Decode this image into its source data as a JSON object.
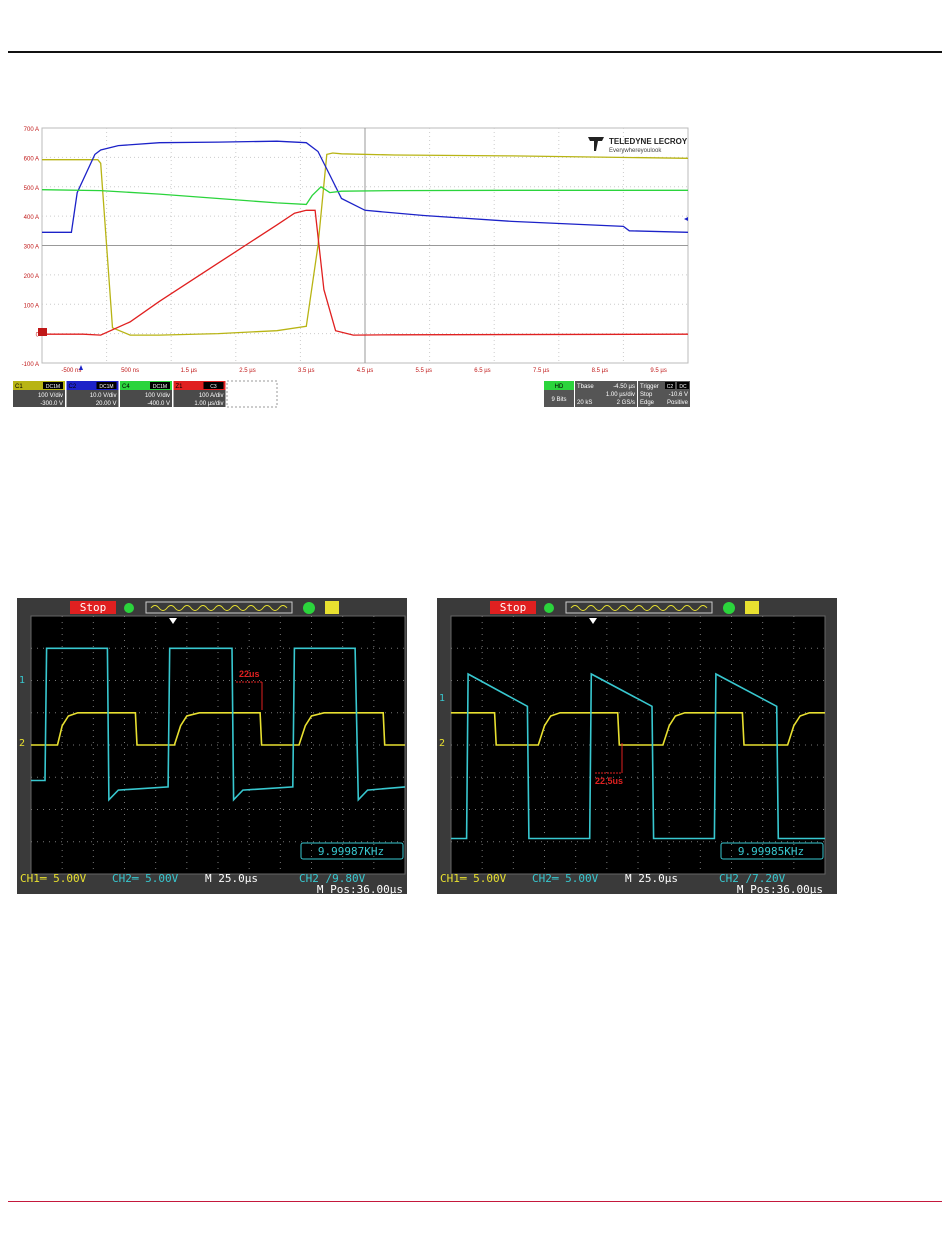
{
  "lecroy": {
    "logo_brand": "TELEDYNE LECROY",
    "logo_tagline": "Everywhereyoulook",
    "y_ticks": [
      "700 A",
      "600 A",
      "500 A",
      "400 A",
      "300 A",
      "200 A",
      "100 A",
      "0",
      "-100 A"
    ],
    "x_ticks": [
      "-500 ns",
      "500 ns",
      "1.5 µs",
      "2.5 µs",
      "3.5 µs",
      "4.5 µs",
      "5.5 µs",
      "6.5 µs",
      "7.5 µs",
      "8.5 µs",
      "9.5 µs"
    ],
    "channels": [
      {
        "id": "C1",
        "coupling": "DC1M",
        "scale": "100 V/div",
        "offset": "-300.0 V",
        "color": "#b8b414"
      },
      {
        "id": "C2",
        "coupling": "DC1M",
        "scale": "10.0 V/div",
        "offset": "20.00 V",
        "color": "#1c22c8"
      },
      {
        "id": "C4",
        "coupling": "DC1M",
        "scale": "100 V/div",
        "offset": "-400.0 V",
        "color": "#2bd43c"
      },
      {
        "id": "Z1",
        "coupling": "C3",
        "scale": "100 A/div",
        "offset": "1.00 µs/div",
        "color": "#e02020"
      }
    ],
    "hd_label": "HD",
    "bits": "9 Bits",
    "tbase_label": "Tbase",
    "tbase_value": "-4.50 µs",
    "tbase_div": "1.00 µs/div",
    "samples": "20 kS",
    "rate": "2 GS/s",
    "trigger_label": "Trigger",
    "trigger_ch": "C2",
    "trigger_coupling": "DC",
    "trigger_mode": "Stop",
    "trigger_level": "-10.6 V",
    "trigger_type": "Edge",
    "trigger_slope": "Positive",
    "colors": {
      "yellow": "#b8b414",
      "blue": "#1c22c8",
      "green": "#2bd43c",
      "red": "#e02020"
    }
  },
  "scope1": {
    "status": "Stop",
    "ch1_marker": "1",
    "ch2_marker": "2",
    "annotation": "22us",
    "freq": "9.99987KHz",
    "ch1": "CH1═ 5.00V",
    "ch2": "CH2═ 5.00V",
    "time": "M 25.0µs",
    "trigger": "CH2 ∕9.80V",
    "mpos": "M Pos:36.00µs"
  },
  "scope2": {
    "status": "Stop",
    "ch1_marker": "1",
    "ch2_marker": "2",
    "annotation": "22.5us",
    "freq": "9.99985KHz",
    "ch1": "CH1═ 5.00V",
    "ch2": "CH2═ 5.00V",
    "time": "M 25.0µs",
    "trigger": "CH2 ∕7.20V",
    "mpos": "M Pos:36.00µs"
  },
  "chart_data": [
    {
      "type": "line",
      "x_unit": "µs",
      "xlim": [
        -1.0,
        10.0
      ],
      "ylim": [
        -100,
        700
      ],
      "y_unit": "A",
      "grid": true,
      "series": [
        {
          "name": "C1",
          "color": "#b8b414",
          "x": [
            -1.0,
            -0.05,
            0.0,
            0.2,
            0.5,
            1.0,
            2.0,
            3.0,
            3.5,
            3.7,
            3.85,
            3.95,
            4.1,
            5.0,
            7.0,
            10.0
          ],
          "y": [
            592,
            592,
            580,
            20,
            -5,
            -5,
            0,
            10,
            25,
            300,
            610,
            615,
            612,
            608,
            605,
            597
          ]
        },
        {
          "name": "C2",
          "color": "#1c22c8",
          "x": [
            -1.0,
            -0.5,
            -0.4,
            -0.1,
            0.0,
            0.3,
            1.0,
            2.0,
            3.0,
            3.5,
            3.7,
            3.9,
            4.1,
            4.5,
            5.5,
            7.0,
            8.9,
            9.0,
            10.0
          ],
          "y": [
            345,
            345,
            480,
            610,
            625,
            640,
            650,
            652,
            655,
            650,
            620,
            540,
            460,
            420,
            402,
            382,
            365,
            350,
            345
          ]
        },
        {
          "name": "C4",
          "color": "#2bd43c",
          "x": [
            -1.0,
            0.0,
            1.0,
            2.0,
            3.0,
            3.5,
            3.6,
            3.75,
            3.9,
            4.1,
            5.0,
            7.0,
            10.0
          ],
          "y": [
            490,
            487,
            475,
            460,
            445,
            440,
            470,
            500,
            480,
            485,
            487,
            488,
            488
          ]
        },
        {
          "name": "Z1",
          "color": "#e02020",
          "x": [
            -1.0,
            -0.3,
            0.0,
            0.5,
            1.0,
            2.0,
            3.0,
            3.3,
            3.5,
            3.65,
            3.8,
            4.0,
            4.3,
            5.0,
            10.0
          ],
          "y": [
            -2,
            -2,
            -5,
            40,
            110,
            240,
            370,
            410,
            420,
            420,
            150,
            10,
            -5,
            -4,
            -2
          ]
        }
      ]
    },
    {
      "type": "line",
      "x_unit": "div",
      "xlim": [
        0,
        12
      ],
      "ylim": [
        -4,
        4
      ],
      "grid": true,
      "series": [
        {
          "name": "CH1",
          "color": "#e8e030",
          "x": [
            0,
            0.85,
            1.0,
            1.2,
            1.5,
            3.35,
            3.4,
            4.6,
            4.8,
            5.0,
            5.4,
            7.35,
            7.4,
            8.6,
            8.8,
            9.0,
            9.4,
            11.3,
            11.35,
            12
          ],
          "y": [
            0,
            0,
            0.6,
            0.9,
            1.0,
            1.0,
            0,
            0,
            0.6,
            0.9,
            1.0,
            1.0,
            0,
            0,
            0.6,
            0.9,
            1.0,
            1.0,
            0,
            0
          ]
        },
        {
          "name": "CH2",
          "color": "#38c8d0",
          "x": [
            0,
            0.45,
            0.5,
            2.45,
            2.5,
            2.8,
            4.4,
            4.45,
            6.45,
            6.5,
            6.8,
            8.4,
            8.45,
            10.4,
            10.5,
            10.8,
            12
          ],
          "y": [
            -1.1,
            -1.1,
            3.0,
            3.0,
            -1.7,
            -1.4,
            -1.3,
            3.0,
            3.0,
            -1.7,
            -1.4,
            -1.3,
            3.0,
            3.0,
            -1.7,
            -1.4,
            -1.3
          ]
        }
      ]
    },
    {
      "type": "line",
      "x_unit": "div",
      "xlim": [
        0,
        12
      ],
      "ylim": [
        -4,
        4
      ],
      "grid": true,
      "series": [
        {
          "name": "CH1",
          "color": "#e8e030",
          "x": [
            0,
            1.4,
            1.45,
            2.8,
            3.0,
            3.2,
            3.5,
            5.35,
            5.4,
            6.8,
            7.0,
            7.2,
            7.5,
            9.35,
            9.4,
            10.8,
            11.0,
            11.2,
            11.5,
            12
          ],
          "y": [
            1.0,
            1.0,
            0,
            0,
            0.6,
            0.9,
            1.0,
            1.0,
            0,
            0,
            0.6,
            0.9,
            1.0,
            1.0,
            0,
            0,
            0.6,
            0.9,
            1.0,
            1.0
          ]
        },
        {
          "name": "CH2",
          "color": "#38c8d0",
          "x": [
            0,
            0.5,
            0.55,
            2.45,
            2.5,
            4.45,
            4.5,
            6.45,
            6.5,
            8.45,
            8.5,
            10.45,
            10.5,
            12
          ],
          "y": [
            -2.9,
            -2.9,
            2.2,
            1.2,
            -2.9,
            -2.9,
            2.2,
            1.2,
            -2.9,
            -2.9,
            2.2,
            1.2,
            -2.9,
            -2.9
          ]
        }
      ]
    }
  ]
}
